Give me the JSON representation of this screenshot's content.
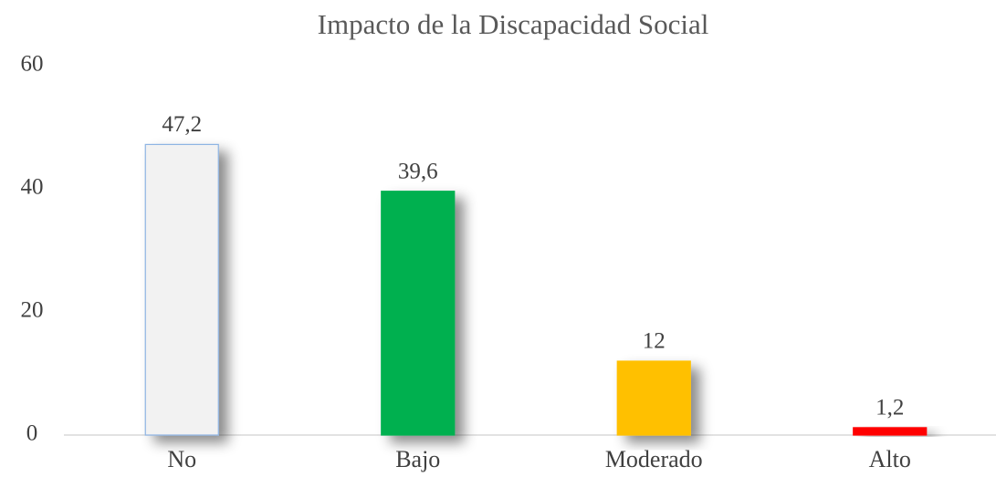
{
  "chart_data": {
    "type": "bar",
    "title": "Impacto de la Discapacidad Social",
    "categories": [
      "No",
      "Bajo",
      "Moderado",
      "Alto"
    ],
    "values": [
      47.2,
      39.6,
      12,
      1.2
    ],
    "value_labels": [
      "47,2",
      "39,6",
      "12",
      "1,2"
    ],
    "colors": [
      "#f2f2f2",
      "#00b050",
      "#ffc000",
      "#ff0000"
    ],
    "edgecolors": [
      "#8eb4e3",
      "#00b050",
      "#ffc000",
      "#ff0000"
    ],
    "ylim": [
      0,
      60
    ],
    "yticks": [
      0,
      20,
      40,
      60
    ],
    "grid": false
  }
}
